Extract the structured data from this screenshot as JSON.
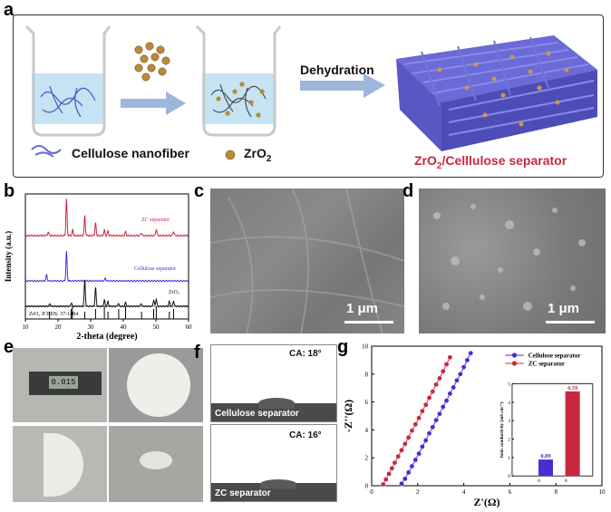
{
  "panels": {
    "a": {
      "label": "a",
      "dehydration": "Dehydration",
      "legend_fiber": "Cellulose nanofiber",
      "legend_zro2": "ZrO",
      "legend_zro2_sub": "2",
      "product_prefix": "ZrO",
      "product_sub": "2",
      "product_suffix": "/Celllulose separator"
    },
    "b": {
      "label": "b"
    },
    "c": {
      "label": "c",
      "scale": "1 μm"
    },
    "d": {
      "label": "d",
      "scale": "1 μm"
    },
    "e": {
      "label": "e",
      "caliper_readout": "0.015"
    },
    "f": {
      "label": "f",
      "top_ca": "CA: 18°",
      "top_name": "Cellulose separator",
      "bottom_ca": "CA: 16°",
      "bottom_name": "ZC separator"
    },
    "g": {
      "label": "g"
    }
  },
  "colors": {
    "zc": "#c8283e",
    "cellulose": "#4a2bd6",
    "zro2": "#111111",
    "fiber": "#6a6ad8",
    "sphere": "#b88a3a",
    "arrow": "#9eb6dc",
    "water": "#bfe0f2",
    "product_text": "#c8283e"
  },
  "chart_data": [
    {
      "type": "line",
      "panel": "b",
      "xlabel": "2-theta (degree)",
      "ylabel": "Intensity (a.u.)",
      "xlim": [
        10,
        60
      ],
      "xticks": [
        10,
        20,
        30,
        40,
        50,
        60
      ],
      "series": [
        {
          "name": "ZC separator",
          "color": "#c8283e",
          "peaks": [
            [
              17,
              0.1
            ],
            [
              22.6,
              1.0
            ],
            [
              24.5,
              0.15
            ],
            [
              28.2,
              0.55
            ],
            [
              31.5,
              0.35
            ],
            [
              34.2,
              0.15
            ],
            [
              35.3,
              0.12
            ],
            [
              40.7,
              0.1
            ],
            [
              45.5,
              0.08
            ],
            [
              50.1,
              0.18
            ],
            [
              55.4,
              0.12
            ]
          ]
        },
        {
          "name": "Cellulose separator",
          "color": "#4a2bd6",
          "peaks": [
            [
              16.5,
              0.18
            ],
            [
              22.6,
              0.9
            ],
            [
              34.5,
              0.08
            ]
          ]
        },
        {
          "name": "ZrO2",
          "color": "#111111",
          "peaks": [
            [
              17.5,
              0.08
            ],
            [
              24.1,
              0.12
            ],
            [
              28.2,
              0.85
            ],
            [
              31.5,
              0.6
            ],
            [
              34.2,
              0.2
            ],
            [
              35.3,
              0.15
            ],
            [
              38.5,
              0.1
            ],
            [
              40.7,
              0.12
            ],
            [
              45.5,
              0.1
            ],
            [
              49.3,
              0.2
            ],
            [
              50.1,
              0.25
            ],
            [
              54.1,
              0.15
            ],
            [
              55.4,
              0.18
            ]
          ]
        }
      ],
      "reference_label": "ZrO₂  JCPDS: 37-1484",
      "reference_lines": [
        17.4,
        24.0,
        24.4,
        28.2,
        31.5,
        34.2,
        35.3,
        38.6,
        40.7,
        45.6,
        49.3,
        50.1,
        54.1,
        55.4
      ],
      "legend_texts": [
        "ZC separator",
        "Cellulose separator",
        "ZrO₂"
      ]
    },
    {
      "type": "scatter",
      "panel": "g",
      "xlabel": "Z'(Ω)",
      "ylabel": "-Z''(Ω)",
      "xlim": [
        0,
        10
      ],
      "ylim": [
        0,
        10
      ],
      "xticks": [
        0,
        2,
        4,
        6,
        8,
        10
      ],
      "yticks": [
        0,
        2,
        4,
        6,
        8,
        10
      ],
      "series": [
        {
          "name": "Cellulose separator",
          "color": "#4a2bd6",
          "x": [
            1.3,
            1.45,
            1.6,
            1.75,
            1.9,
            2.05,
            2.2,
            2.35,
            2.5,
            2.65,
            2.8,
            2.95,
            3.1,
            3.25,
            3.4,
            3.55,
            3.7,
            3.85,
            4.0,
            4.15,
            4.3
          ],
          "y": [
            0.15,
            0.5,
            0.95,
            1.4,
            1.85,
            2.3,
            2.8,
            3.25,
            3.75,
            4.2,
            4.7,
            5.15,
            5.65,
            6.1,
            6.6,
            7.05,
            7.55,
            8.0,
            8.5,
            9.0,
            9.5
          ]
        },
        {
          "name": "ZC separator",
          "color": "#c8283e",
          "x": [
            0.5,
            0.62,
            0.75,
            0.88,
            1.0,
            1.15,
            1.3,
            1.45,
            1.6,
            1.75,
            1.9,
            2.05,
            2.2,
            2.35,
            2.5,
            2.65,
            2.8,
            2.95,
            3.1,
            3.25,
            3.4
          ],
          "y": [
            0.1,
            0.45,
            0.85,
            1.25,
            1.65,
            2.1,
            2.55,
            3.0,
            3.45,
            3.95,
            4.4,
            4.85,
            5.35,
            5.8,
            6.3,
            6.75,
            7.25,
            7.7,
            8.2,
            8.7,
            9.2
          ]
        }
      ]
    },
    {
      "type": "bar",
      "panel": "g-inset",
      "ylabel": "Ionic conductivity (mS cm⁻¹)",
      "ylim": [
        0,
        5
      ],
      "yticks": [
        0,
        1,
        2,
        3,
        4,
        5
      ],
      "xlim": [
        4,
        10
      ],
      "xticks": [
        6,
        8
      ],
      "categories": [
        "Cellulose separator",
        "ZC separator"
      ],
      "x": [
        6.5,
        8.5
      ],
      "values": [
        0.89,
        4.59
      ],
      "value_labels": [
        "0.89",
        "4.59"
      ]
    }
  ]
}
